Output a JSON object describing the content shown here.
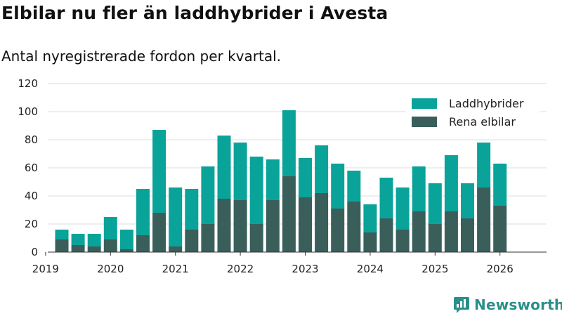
{
  "title": "Elbilar nu fler än laddhybrider i Avesta",
  "subtitle": "Antal nyregistrerade fordon per kvartal.",
  "brand": "Newsworthy",
  "chart_data": {
    "type": "bar",
    "stacked": true,
    "title": "Elbilar nu fler än laddhybrider i Avesta",
    "subtitle": "Antal nyregistrerade fordon per kvartal.",
    "xlabel": "",
    "ylabel": "",
    "ylim": [
      0,
      120
    ],
    "yticks": [
      0,
      20,
      40,
      60,
      80,
      100,
      120
    ],
    "xticks": [
      "2019",
      "2020",
      "2021",
      "2022",
      "2023",
      "2024",
      "2025",
      "2026"
    ],
    "grid": true,
    "legend_position": "top-right",
    "categories": [
      "2019Q2",
      "2019Q3",
      "2019Q4",
      "2020Q1",
      "2020Q2",
      "2020Q3",
      "2020Q4",
      "2021Q1",
      "2021Q2",
      "2021Q3",
      "2021Q4",
      "2022Q1",
      "2022Q2",
      "2022Q3",
      "2022Q4",
      "2023Q1",
      "2023Q2",
      "2023Q3",
      "2023Q4",
      "2024Q1",
      "2024Q2",
      "2024Q3",
      "2024Q4",
      "2025Q1",
      "2025Q2",
      "2025Q3",
      "2025Q4",
      "2026Q1"
    ],
    "series": [
      {
        "name": "Rena elbilar",
        "color": "#3a5f5b",
        "values": [
          9,
          5,
          4,
          9,
          2,
          12,
          28,
          4,
          16,
          20,
          38,
          37,
          20,
          37,
          54,
          39,
          42,
          31,
          36,
          14,
          24,
          16,
          29,
          20,
          29,
          24,
          46,
          33
        ]
      },
      {
        "name": "Laddhybrider",
        "color": "#0aa39a",
        "values": [
          7,
          8,
          9,
          16,
          14,
          33,
          59,
          42,
          29,
          41,
          45,
          41,
          48,
          29,
          47,
          28,
          34,
          32,
          22,
          20,
          29,
          30,
          32,
          29,
          40,
          25,
          32,
          30
        ]
      }
    ]
  }
}
